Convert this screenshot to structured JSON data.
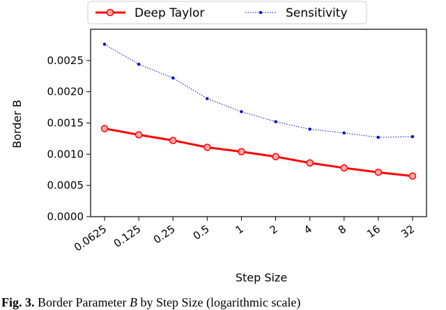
{
  "chart_data": {
    "type": "line",
    "categories": [
      "0.0625",
      "0.125",
      "0.25",
      "0.5",
      "1",
      "2",
      "4",
      "8",
      "16",
      "32"
    ],
    "series": [
      {
        "name": "Deep Taylor",
        "color": "#ff0000",
        "values": [
          0.00141,
          0.00131,
          0.00122,
          0.00111,
          0.00104,
          0.00096,
          0.00086,
          0.00078,
          0.00071,
          0.00065
        ]
      },
      {
        "name": "Sensitivity",
        "color": "#0000cc",
        "values": [
          0.00276,
          0.00244,
          0.00222,
          0.00189,
          0.00168,
          0.00152,
          0.0014,
          0.00134,
          0.00127,
          0.00128
        ]
      }
    ],
    "title": "",
    "xlabel": "Step Size",
    "ylabel": "Border B",
    "ylim": [
      0.0,
      0.003
    ],
    "yticks": [
      "0.0000",
      "0.0005",
      "0.0010",
      "0.0015",
      "0.0020",
      "0.0025"
    ],
    "grid": false,
    "legend_position": "top"
  },
  "caption": {
    "label": "Fig. 3.",
    "text_before": " Border Parameter ",
    "symbol": "B",
    "text_after": " by Step Size (logarithmic scale)"
  }
}
